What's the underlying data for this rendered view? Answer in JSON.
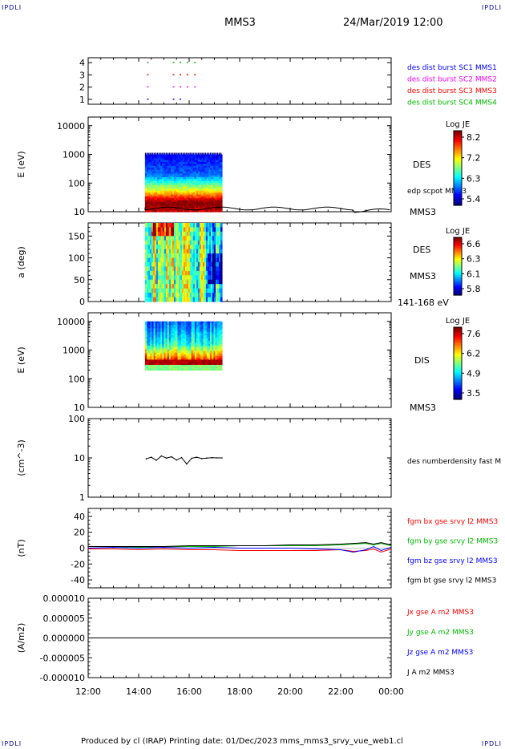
{
  "corners": {
    "tl": "IPDLI",
    "tr": "IPDLI",
    "bl": "IPDLI",
    "br": "IPDLI"
  },
  "header": {
    "mission": "MMS3",
    "datetime": "24/Mar/2019 12:00"
  },
  "footer": {
    "text": "Produced by cl (IRAP)   Printing date: 01/Dec/2023   mms_mms3_srvy_vue_web1.cl"
  },
  "chart_data": [
    {
      "type": "scatter",
      "name": "burst-availability",
      "y_ticks": [
        "1",
        "2",
        "3",
        "4"
      ],
      "ylim": [
        0.6,
        4.4
      ],
      "xlim": [
        12,
        24
      ],
      "legend": [
        {
          "label": "des dist burst SC1 MMS1",
          "color": "#0000ff"
        },
        {
          "label": "des dist burst SC2 MMS2",
          "color": "#ff00ff"
        },
        {
          "label": "des dist burst SC3 MMS3",
          "color": "#ff0000"
        },
        {
          "label": "des dist burst SC4 MMS4",
          "color": "#00bb00"
        }
      ],
      "burst_times": [
        14.33,
        15.35,
        15.62,
        15.9,
        16.2
      ]
    },
    {
      "type": "heatmap",
      "name": "des-energy-spectrogram",
      "ylabel": "E (eV)",
      "y_log": true,
      "y_ticks": [
        "10",
        "100",
        "1000",
        "10000"
      ],
      "ylim": [
        10,
        20000
      ],
      "x_range_hours": [
        14.25,
        17.3
      ],
      "energy_range": [
        10,
        1000
      ],
      "side_labels": [
        "DES",
        "edp scpot MMS3",
        "MMS3"
      ],
      "colorbar": {
        "title": "Log JE",
        "ticks": [
          "8.2",
          "7.2",
          "6.3",
          "5.4"
        ]
      }
    },
    {
      "type": "heatmap",
      "name": "des-pitch-angle",
      "ylabel": "a (deg)",
      "y_ticks": [
        "0",
        "50",
        "100",
        "150"
      ],
      "ylim": [
        0,
        180
      ],
      "x_range_hours": [
        14.25,
        17.3
      ],
      "side_labels": [
        "DES",
        "MMS3",
        "141-168 eV"
      ],
      "colorbar": {
        "title": "Log JE",
        "ticks": [
          "6.6",
          "6.3",
          "6.1",
          "5.8"
        ]
      }
    },
    {
      "type": "heatmap",
      "name": "dis-energy-spectrogram",
      "ylabel": "E (eV)",
      "y_log": true,
      "y_ticks": [
        "10",
        "100",
        "1000",
        "10000"
      ],
      "ylim": [
        10,
        20000
      ],
      "x_range_hours": [
        14.25,
        17.3
      ],
      "energy_range": [
        200,
        10000
      ],
      "side_labels": [
        "DIS",
        "MMS3"
      ],
      "colorbar": {
        "title": "Log JE",
        "ticks": [
          "7.6",
          "6.2",
          "4.9",
          "3.5"
        ]
      }
    },
    {
      "type": "line",
      "name": "number-density",
      "ylabel": "(cm^-3)",
      "y_log": true,
      "y_ticks": [
        "1",
        "10",
        "100"
      ],
      "ylim": [
        1,
        100
      ],
      "x": [
        14.3,
        14.5,
        14.7,
        14.9,
        15.1,
        15.3,
        15.5,
        15.7,
        15.9,
        16.1,
        16.3,
        16.5,
        16.7,
        16.9,
        17.1,
        17.3
      ],
      "values": [
        9.5,
        10.4,
        8.7,
        11.2,
        9.9,
        10.7,
        8.8,
        10.2,
        7.0,
        9.8,
        10.4,
        9.6,
        9.9,
        10.1,
        10.0,
        10.0
      ],
      "legend": [
        {
          "label": "des numberdensity fast M",
          "color": "#000000"
        }
      ]
    },
    {
      "type": "line",
      "name": "magnetic-field",
      "ylabel": "(nT)",
      "y_ticks": [
        "-40",
        "-20",
        "0",
        "20",
        "40"
      ],
      "ylim": [
        -50,
        50
      ],
      "x": [
        12,
        13,
        14,
        15,
        16,
        17,
        18,
        19,
        20,
        21,
        22,
        22.5,
        23,
        23.3,
        23.6,
        24
      ],
      "series": [
        {
          "name": "fgm bx gse srvy l2 MMS3",
          "color": "#ff0000",
          "values": [
            -1,
            -1,
            -2,
            -1,
            -2,
            -2,
            -3,
            -3,
            -3,
            -3,
            -2,
            -4,
            -3,
            -1,
            -5,
            -1
          ]
        },
        {
          "name": "fgm by gse srvy l2 MMS3",
          "color": "#00bb00",
          "values": [
            2,
            2,
            1,
            2,
            2,
            2,
            3,
            3,
            3,
            3,
            4,
            5,
            6,
            4,
            6,
            3
          ]
        },
        {
          "name": "fgm bz gse srvy l2 MMS3",
          "color": "#0000ff",
          "values": [
            0,
            1,
            0,
            1,
            0,
            1,
            0,
            0,
            0,
            -1,
            -2,
            -5,
            -2,
            2,
            -3,
            1
          ]
        },
        {
          "name": "fgm bt gse srvy l2 MMS3",
          "color": "#000000",
          "values": [
            2,
            2,
            2,
            2,
            3,
            3,
            3,
            3,
            4,
            4,
            5,
            6,
            7,
            5,
            7,
            4
          ]
        }
      ]
    },
    {
      "type": "line",
      "name": "current-density",
      "ylabel": "(A/m2)",
      "y_ticks": [
        "-0.000010",
        "-0.000005",
        "0.000000",
        "0.000005",
        "0.000010"
      ],
      "ylim": [
        -1e-05,
        1e-05
      ],
      "x": [
        12,
        14,
        16,
        18,
        20,
        22,
        24
      ],
      "values": [
        0,
        0,
        0,
        0,
        0,
        0,
        0
      ],
      "legend": [
        {
          "label": "Jx gse A m2 MMS3",
          "color": "#ff0000"
        },
        {
          "label": "Jy gse A m2 MMS3",
          "color": "#00bb00"
        },
        {
          "label": "Jz gse A m2 MMS3",
          "color": "#0000ff"
        },
        {
          "label": "J A m2 MMS3",
          "color": "#000000"
        }
      ]
    }
  ],
  "x_axis": {
    "ticks": [
      "12:00",
      "14:00",
      "16:00",
      "18:00",
      "20:00",
      "22:00",
      "00:00"
    ],
    "xlim": [
      12,
      24
    ]
  }
}
